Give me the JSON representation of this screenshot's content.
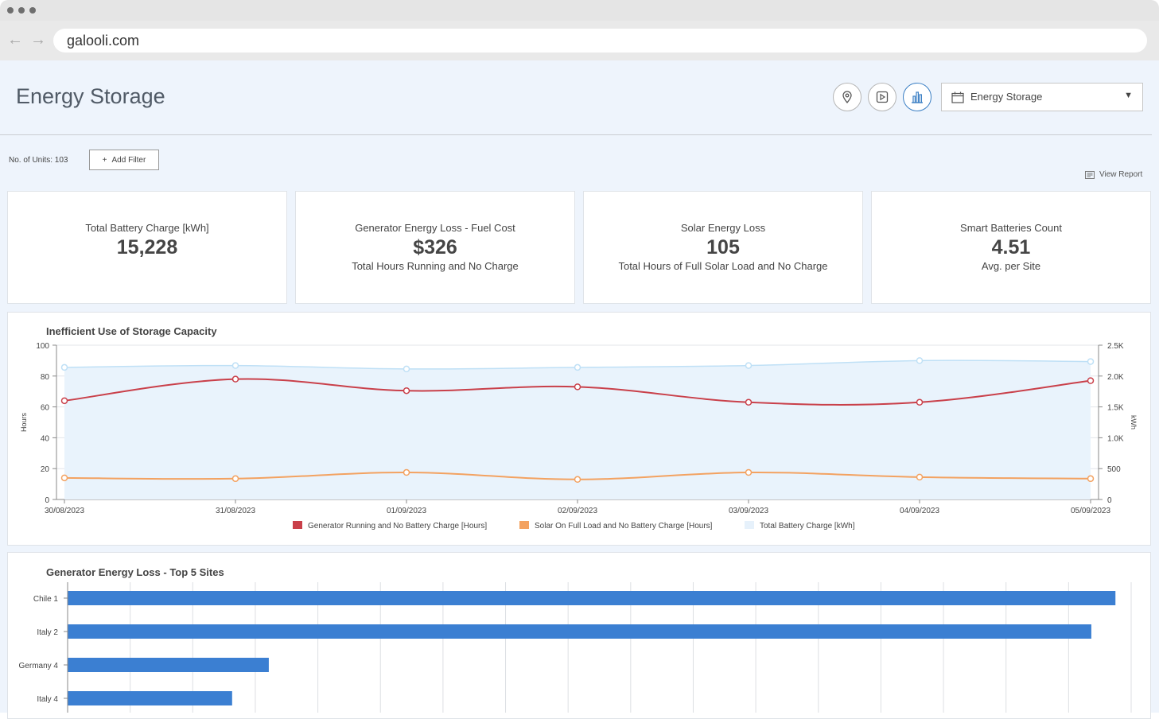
{
  "browser": {
    "url": "galooli.com"
  },
  "header": {
    "title": "Energy Storage",
    "dropdown_value": "Energy Storage"
  },
  "toolbar": {
    "units_label": "No. of Units: 103",
    "add_filter_label": "Add Filter",
    "view_report_label": "View Report"
  },
  "kpis": [
    {
      "title": "Total Battery Charge [kWh]",
      "value": "15,228",
      "subtitle": ""
    },
    {
      "title": "Generator Energy Loss - Fuel Cost",
      "value": "$326",
      "subtitle": "Total Hours Running and No Charge"
    },
    {
      "title": "Solar Energy Loss",
      "value": "105",
      "subtitle": "Total Hours of Full Solar Load and No Charge"
    },
    {
      "title": "Smart Batteries Count",
      "value": "4.51",
      "subtitle": "Avg. per Site"
    }
  ],
  "chart_data": [
    {
      "type": "line",
      "title": "Inefficient Use of Storage Capacity",
      "ylabel": "Hours",
      "y2label": "kWh",
      "ylim": [
        0,
        100
      ],
      "y2lim": [
        0,
        2500
      ],
      "yticks": [
        "0",
        "20",
        "40",
        "60",
        "80",
        "100"
      ],
      "y2ticks": [
        "0",
        "500",
        "1.0K",
        "1.5K",
        "2.0K",
        "2.5K"
      ],
      "x": [
        "30/08/2023",
        "31/08/2023",
        "01/09/2023",
        "02/09/2023",
        "03/09/2023",
        "04/09/2023",
        "05/09/2023"
      ],
      "series": [
        {
          "name": "Generator Running and No Battery Charge [Hours]",
          "axis": "left",
          "color": "#c9404a",
          "values": [
            64,
            78,
            70.5,
            73,
            63,
            63,
            77
          ]
        },
        {
          "name": "Solar On Full Load and No Battery Charge [Hours]",
          "axis": "left",
          "color": "#f3a261",
          "values": [
            14,
            13.5,
            17.5,
            13,
            17.5,
            14.5,
            13.5
          ]
        },
        {
          "name": "Total Battery Charge [kWh]",
          "axis": "right",
          "color": "#bfe0f6",
          "values": [
            2140,
            2170,
            2115,
            2140,
            2170,
            2250,
            2235
          ]
        }
      ],
      "grid": true,
      "legend": "bottom"
    },
    {
      "type": "bar",
      "orientation": "horizontal",
      "title": "Generator Energy Loss - Top 5 Sites",
      "categories": [
        "Chile 1",
        "Italy 2",
        "Germany 4",
        "Italy 4"
      ],
      "values": [
        100,
        97.7,
        19.2,
        15.7
      ],
      "xlim": [
        0,
        101.5
      ],
      "color": "#3b7fd2",
      "grid": true
    }
  ]
}
